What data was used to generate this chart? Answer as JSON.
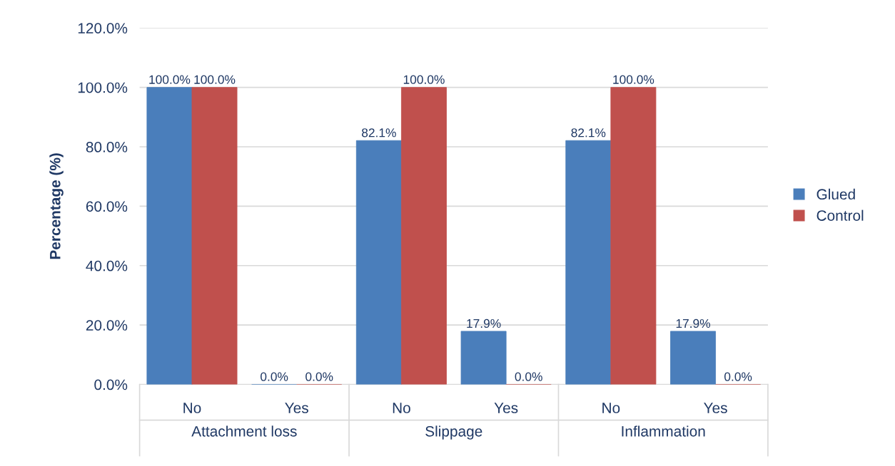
{
  "chart_data": {
    "type": "bar",
    "ylabel": "Percentage (%)",
    "categories": [
      "No",
      "Yes",
      "No",
      "Yes",
      "No",
      "Yes"
    ],
    "annotations": [
      "Attachment loss",
      "Slippage",
      "Inflammation"
    ],
    "series": [
      {
        "name": "Glued",
        "color": "#4a7ebb",
        "values": [
          100,
          0,
          82.1,
          17.9,
          82.1,
          17.9
        ],
        "value_labels": [
          "100.0%",
          "0.0%",
          "82.1%",
          "17.9%",
          "82.1%",
          "17.9%"
        ]
      },
      {
        "name": "Control",
        "color": "#c0504d",
        "values": [
          100,
          0,
          100,
          0,
          100,
          0
        ],
        "value_labels": [
          "100.0%",
          "0.0%",
          "100.0%",
          "0.0%",
          "100.0%",
          "0.0%"
        ]
      }
    ],
    "ylim": [
      0,
      120
    ],
    "yticks": [
      {
        "value": 0,
        "label": "0.0%"
      },
      {
        "value": 20,
        "label": "20.0%"
      },
      {
        "value": 40,
        "label": "40.0%"
      },
      {
        "value": 60,
        "label": "60.0%"
      },
      {
        "value": 80,
        "label": "80.0%"
      },
      {
        "value": 100,
        "label": "100.0%"
      },
      {
        "value": 120,
        "label": "120.0%"
      }
    ],
    "grid": "y",
    "legend": "right"
  }
}
